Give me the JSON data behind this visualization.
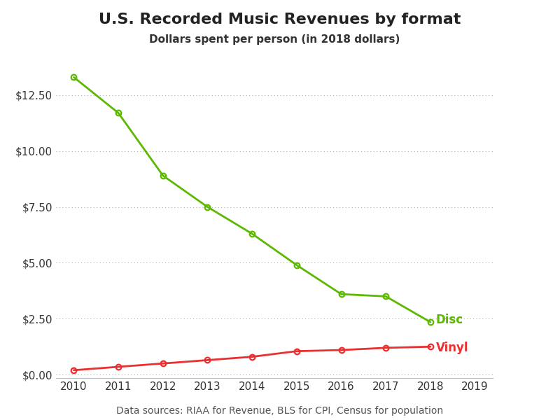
{
  "title": "U.S. Recorded Music Revenues by format",
  "subtitle": "Dollars spent per person (in 2018 dollars)",
  "caption": "Data sources: RIAA for Revenue, BLS for CPI, Census for population",
  "years": [
    2010,
    2011,
    2012,
    2013,
    2014,
    2015,
    2016,
    2017,
    2018
  ],
  "disc": [
    13.3,
    11.7,
    8.9,
    7.5,
    6.3,
    4.9,
    3.6,
    3.5,
    2.35
  ],
  "vinyl": [
    0.2,
    0.35,
    0.5,
    0.65,
    0.8,
    1.05,
    1.1,
    1.2,
    1.25
  ],
  "disc_color": "#5cb800",
  "vinyl_color": "#e83030",
  "disc_label": "Disc",
  "vinyl_label": "Vinyl",
  "xlim": [
    2009.6,
    2019.4
  ],
  "ylim": [
    -0.15,
    14.5
  ],
  "yticks": [
    0.0,
    2.5,
    5.0,
    7.5,
    10.0,
    12.5
  ],
  "xticks": [
    2010,
    2011,
    2012,
    2013,
    2014,
    2015,
    2016,
    2017,
    2018,
    2019
  ],
  "bg_color": "#ffffff",
  "grid_color": "#aaaaaa",
  "title_fontsize": 16,
  "subtitle_fontsize": 11,
  "label_fontsize": 12,
  "caption_fontsize": 10,
  "tick_fontsize": 11
}
